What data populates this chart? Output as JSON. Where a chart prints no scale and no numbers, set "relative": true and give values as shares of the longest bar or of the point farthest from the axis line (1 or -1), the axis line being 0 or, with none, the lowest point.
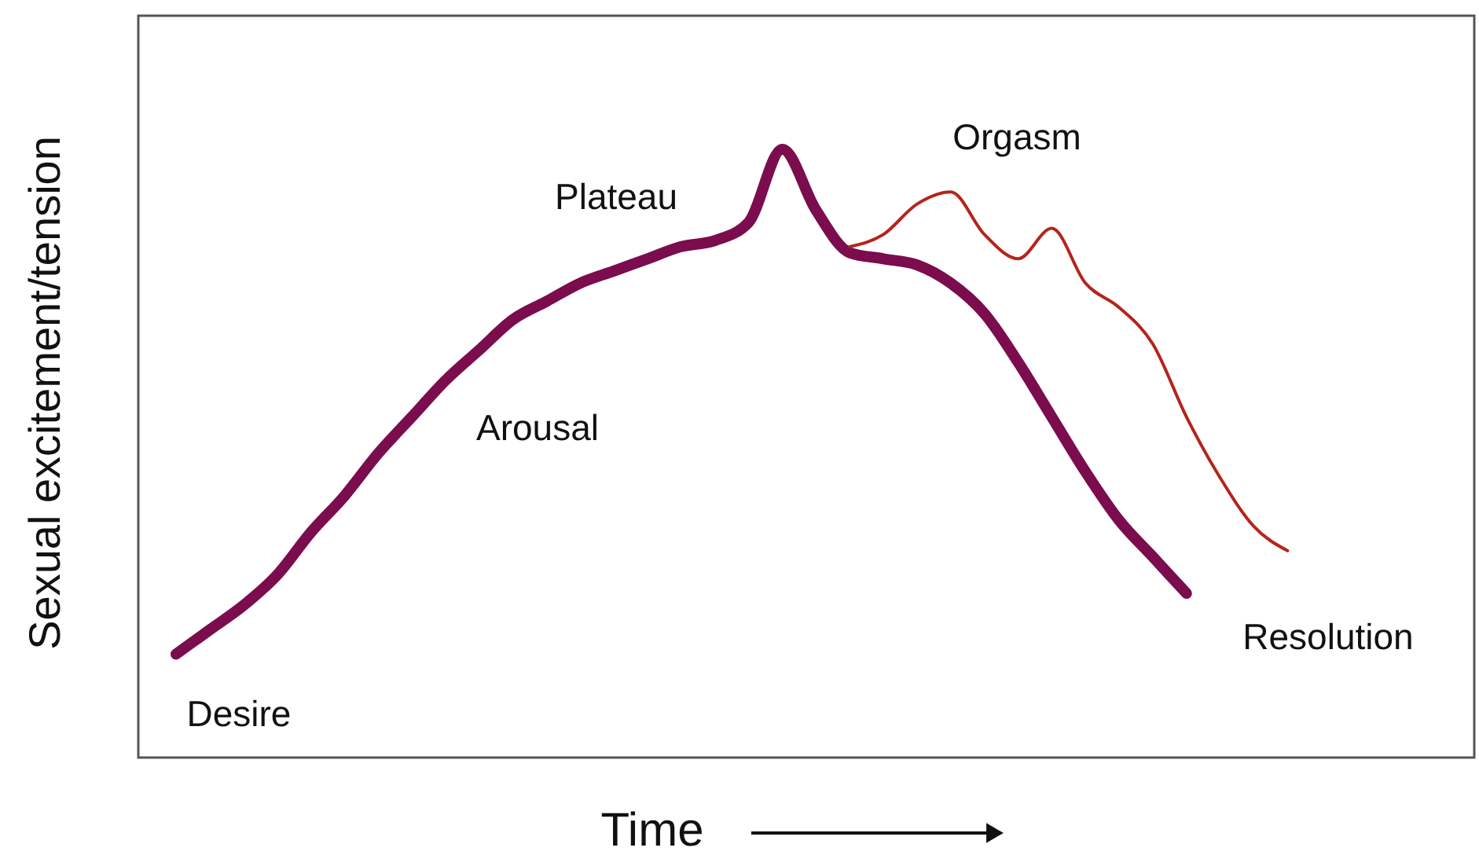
{
  "chart_data": {
    "type": "line",
    "relative": true,
    "tick_labels": false,
    "xlabel": "Time",
    "ylabel": "Sexual excitement/tension",
    "categories": [
      null,
      null,
      null,
      null,
      null,
      null,
      null,
      null,
      null,
      null,
      null,
      null,
      null,
      null,
      null,
      null,
      null,
      null,
      null,
      null,
      null,
      null,
      null,
      null,
      null,
      null,
      null,
      null,
      null,
      null,
      null,
      null,
      null,
      null
    ],
    "series": [
      {
        "color": "#7b0c4e",
        "values": [
          0.17,
          0.21,
          0.25,
          0.3,
          0.37,
          0.43,
          0.5,
          0.56,
          0.62,
          0.67,
          0.72,
          0.75,
          0.78,
          0.8,
          0.82,
          0.84,
          0.85,
          0.88,
          1.0,
          0.9,
          0.83,
          0.82,
          0.81,
          0.78,
          0.73,
          0.65,
          0.56,
          0.47,
          0.39,
          0.33,
          0.27,
          null,
          null,
          null
        ]
      },
      {
        "color": "#b5241c",
        "values": [
          null,
          null,
          null,
          null,
          null,
          null,
          null,
          null,
          null,
          null,
          null,
          null,
          null,
          null,
          null,
          null,
          null,
          null,
          null,
          null,
          0.84,
          0.86,
          0.91,
          0.93,
          0.86,
          0.82,
          0.87,
          0.78,
          0.74,
          0.68,
          0.56,
          0.46,
          0.38,
          0.34
        ]
      }
    ],
    "annotations": [
      "Desire",
      "Arousal",
      "Plateau",
      "Orgasm",
      "Resolution"
    ]
  }
}
